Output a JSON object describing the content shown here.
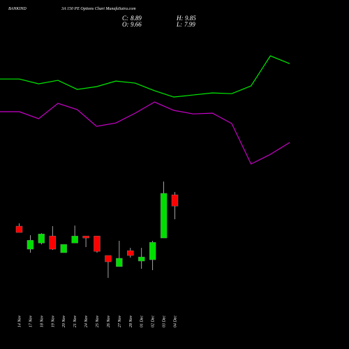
{
  "chart_data": [
    {
      "type": "candlestick",
      "title": "BANKIND",
      "subtitle": "3A 150 PE Options  Chart MunafaSutra.com",
      "ohlc_labels": {
        "close": "C:",
        "open": "O:",
        "high": "H:",
        "low": "L:"
      },
      "categories": [
        "14 Nov",
        "17 Nov",
        "18 Nov",
        "19 Nov",
        "20 Nov",
        "21 Nov",
        "24 Nov",
        "25 Nov",
        "26 Nov",
        "27 Nov",
        "28 Nov",
        "01 Dec",
        "02 Dec",
        "03 Dec",
        "04 Dec"
      ],
      "open": [
        7.52,
        5.95,
        6.37,
        6.85,
        5.71,
        6.37,
        6.85,
        6.85,
        5.52,
        4.76,
        5.85,
        5.14,
        5.23,
        6.71,
        9.66
      ],
      "high": [
        7.71,
        6.9,
        7.04,
        7.52,
        6.28,
        7.56,
        6.85,
        6.85,
        5.52,
        6.52,
        6.04,
        6.04,
        6.52,
        10.56,
        9.85
      ],
      "low": [
        7.09,
        5.71,
        6.28,
        5.9,
        5.71,
        6.37,
        6.09,
        5.71,
        3.99,
        4.76,
        5.37,
        4.61,
        4.52,
        6.71,
        7.99
      ],
      "close": [
        7.09,
        6.56,
        6.99,
        5.95,
        6.28,
        6.85,
        6.71,
        5.8,
        5.09,
        5.33,
        5.52,
        5.42,
        6.42,
        9.76,
        8.89
      ],
      "up_color": "#00dd00",
      "down_color": "#ff0000",
      "ylim": [
        -0.86,
        22.95
      ]
    },
    {
      "type": "line",
      "categories": [
        null,
        null,
        null,
        null,
        null,
        null,
        null,
        null,
        null,
        null,
        null,
        null,
        null,
        null,
        null,
        null
      ],
      "series": [
        {
          "color": "#00ee00",
          "values": [
            17.56,
            17.56,
            17.23,
            17.47,
            16.85,
            17.04,
            17.42,
            17.28,
            16.76,
            16.33,
            16.47,
            16.61,
            16.56,
            17.09,
            19.14,
            18.61
          ]
        },
        {
          "color": "#cc00cc",
          "values": [
            15.33,
            15.33,
            14.85,
            15.9,
            15.47,
            14.33,
            14.56,
            15.23,
            15.99,
            15.42,
            15.18,
            15.23,
            14.52,
            11.76,
            12.42,
            13.23
          ]
        }
      ],
      "ylim": [
        -0.86,
        22.95
      ]
    }
  ]
}
